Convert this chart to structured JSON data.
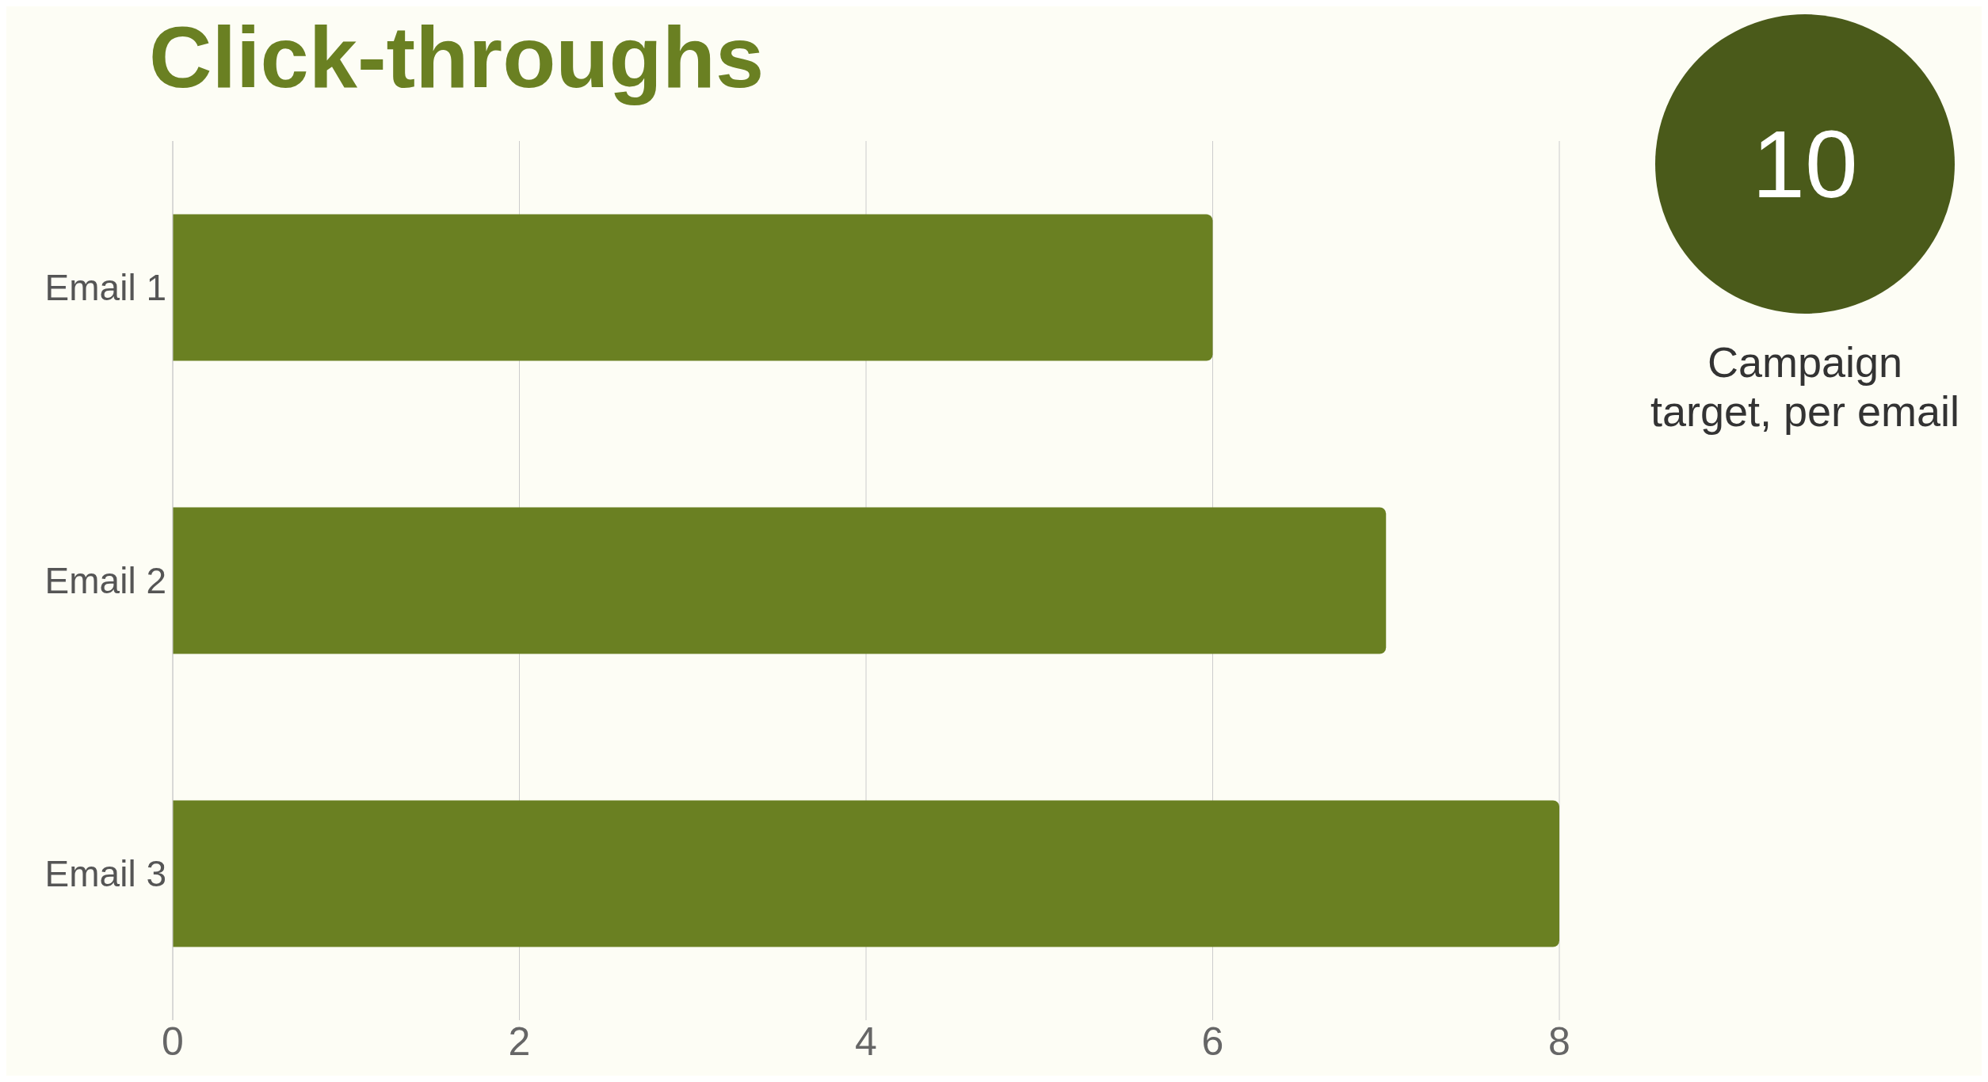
{
  "chart_data": {
    "type": "bar",
    "orientation": "horizontal",
    "title": "Click-throughs",
    "categories": [
      "Email 1",
      "Email 2",
      "Email 3"
    ],
    "values": [
      6,
      7,
      8
    ],
    "color": "#6a8022",
    "xlim": [
      0,
      8
    ],
    "xticks": [
      0,
      2,
      4,
      6,
      8
    ],
    "grid": "x",
    "annotations": [
      "10",
      "Campaign target, per email"
    ]
  }
}
